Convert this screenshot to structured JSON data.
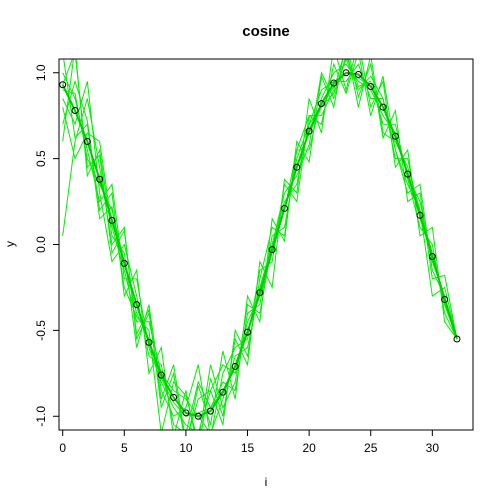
{
  "chart_data": {
    "type": "line",
    "title": "cosine",
    "xlabel": "i",
    "ylabel": "y",
    "xlim": [
      -0.3,
      33.3
    ],
    "ylim": [
      -1.08,
      1.08
    ],
    "x_ticks": [
      0,
      5,
      10,
      15,
      20,
      25,
      30
    ],
    "x_tick_labels": [
      "0",
      "5",
      "10",
      "15",
      "20",
      "25",
      "30"
    ],
    "y_ticks": [
      -1.0,
      -0.5,
      0.0,
      0.5,
      1.0
    ],
    "y_tick_labels": [
      "-1.0",
      "-0.5",
      "0.0",
      "0.5",
      "1.0"
    ],
    "grid": false,
    "colors": {
      "noisy": "#00ee00",
      "mean": "#00cc00",
      "points": "#000000",
      "frame": "#000000"
    },
    "series": [
      {
        "marker": "circle",
        "x": [
          0,
          1,
          2,
          3,
          4,
          5,
          6,
          7,
          8,
          9,
          10,
          11,
          12,
          13,
          14,
          15,
          16,
          17,
          18,
          19,
          20,
          21,
          22,
          23,
          24,
          25,
          26,
          27,
          28,
          29,
          30,
          31,
          32
        ],
        "values": [
          0.93,
          0.78,
          0.6,
          0.38,
          0.14,
          -0.11,
          -0.35,
          -0.57,
          -0.76,
          -0.89,
          -0.98,
          -1.0,
          -0.97,
          -0.86,
          -0.71,
          -0.51,
          -0.28,
          -0.03,
          0.21,
          0.45,
          0.66,
          0.82,
          0.94,
          1.0,
          0.99,
          0.92,
          0.8,
          0.63,
          0.41,
          0.17,
          -0.07,
          -0.32,
          -0.55
        ]
      },
      {
        "values": [
          0.93,
          1.12,
          0.45,
          0.52,
          -0.05,
          0.08,
          -0.52,
          -0.38,
          -0.95,
          -0.75,
          -1.18,
          -0.82,
          -1.05,
          -0.62,
          -0.9,
          -0.3,
          -0.45,
          0.15,
          0.02,
          0.6,
          0.48,
          0.98,
          0.8,
          1.18,
          0.86,
          1.05,
          0.62,
          0.78,
          0.25,
          0.3,
          -0.2,
          -0.18,
          -0.55
        ]
      },
      {
        "values": [
          0.7,
          0.95,
          0.72,
          0.2,
          0.3,
          -0.3,
          -0.15,
          -0.75,
          -0.6,
          -1.12,
          -0.85,
          -1.2,
          -0.78,
          -1.0,
          -0.55,
          -0.7,
          -0.1,
          -0.25,
          0.38,
          0.3,
          0.85,
          0.65,
          1.15,
          0.9,
          1.18,
          0.8,
          0.95,
          0.45,
          0.55,
          0.05,
          0.1,
          -0.45,
          -0.55
        ]
      },
      {
        "values": [
          0.05,
          0.6,
          0.85,
          0.45,
          0.0,
          0.1,
          -0.55,
          -0.4,
          -0.9,
          -0.7,
          -1.15,
          -0.9,
          -0.85,
          -1.05,
          -0.5,
          -0.65,
          -0.2,
          0.1,
          0.05,
          0.55,
          0.75,
          0.7,
          1.05,
          0.88,
          1.12,
          0.75,
          0.98,
          0.55,
          0.3,
          0.35,
          -0.15,
          -0.3,
          -0.55
        ]
      },
      {
        "values": [
          1.12,
          0.62,
          0.7,
          0.15,
          0.22,
          -0.25,
          -0.42,
          -0.5,
          -1.1,
          -0.8,
          -0.88,
          -1.15,
          -0.7,
          -0.95,
          -0.8,
          -0.35,
          -0.4,
          0.0,
          0.3,
          0.4,
          0.58,
          1.0,
          0.85,
          1.1,
          0.92,
          0.95,
          0.7,
          0.7,
          0.38,
          0.1,
          0.0,
          -0.4,
          -0.55
        ]
      },
      {
        "values": [
          0.6,
          1.15,
          0.4,
          0.55,
          0.05,
          -0.05,
          -0.6,
          -0.35,
          -0.85,
          -1.0,
          -0.95,
          -0.7,
          -1.12,
          -0.75,
          -0.6,
          -0.55,
          -0.15,
          -0.1,
          0.35,
          0.25,
          0.75,
          0.75,
          0.9,
          1.15,
          0.8,
          1.1,
          0.65,
          0.6,
          0.45,
          0.2,
          -0.3,
          -0.25,
          -0.55
        ]
      },
      {
        "values": [
          0.85,
          0.7,
          0.95,
          0.3,
          -0.1,
          0.0,
          -0.3,
          -0.65,
          -0.7,
          -1.05,
          -1.1,
          -0.8,
          -0.95,
          -0.8,
          -0.85,
          -0.4,
          -0.35,
          0.05,
          0.1,
          0.5,
          0.7,
          0.9,
          0.95,
          0.95,
          1.05,
          0.85,
          0.85,
          0.5,
          0.5,
          0.15,
          -0.05,
          -0.35,
          -0.55
        ]
      },
      {
        "values": [
          1.0,
          0.85,
          0.55,
          0.25,
          0.35,
          -0.2,
          -0.2,
          -0.6,
          -0.8,
          -0.95,
          -1.05,
          -1.1,
          -0.85,
          -0.7,
          -0.75,
          -0.45,
          -0.3,
          -0.05,
          0.2,
          0.55,
          0.55,
          0.85,
          1.0,
          1.05,
          0.95,
          0.9,
          0.75,
          0.65,
          0.4,
          0.25,
          -0.1,
          -0.3,
          -0.55
        ]
      },
      {
        "values": [
          0.8,
          0.5,
          0.65,
          0.6,
          0.1,
          -0.15,
          -0.45,
          -0.45,
          -0.75,
          -0.85,
          -0.9,
          -1.0,
          -1.1,
          -0.9,
          -0.65,
          -0.6,
          -0.25,
          0.0,
          0.25,
          0.35,
          0.7,
          0.8,
          0.88,
          1.08,
          0.9,
          0.98,
          0.85,
          0.55,
          0.35,
          0.2,
          -0.05,
          -0.35,
          -0.55
        ]
      },
      {
        "values": [
          0.9,
          0.88,
          0.5,
          0.35,
          0.2,
          -0.1,
          -0.4,
          -0.55,
          -0.78,
          -0.92,
          -1.0,
          -0.98,
          -0.95,
          -0.85,
          -0.7,
          -0.5,
          -0.3,
          -0.02,
          0.22,
          0.45,
          0.65,
          0.8,
          0.92,
          1.0,
          0.97,
          0.92,
          0.8,
          0.62,
          0.42,
          0.18,
          -0.08,
          -0.32,
          -0.55
        ]
      }
    ]
  }
}
